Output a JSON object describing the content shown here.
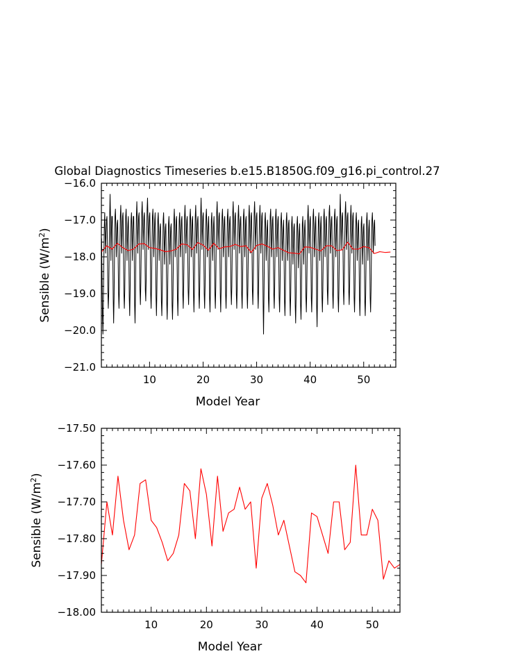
{
  "title": "Global Diagnostics Timeseries b.e15.B1850G.f09_g16.pi_control.27",
  "colors": {
    "monthly_line": "#000000",
    "annual_line": "#ff0000",
    "axis": "#000000",
    "background": "#ffffff"
  },
  "chart_data": [
    {
      "type": "line",
      "xlabel": "Model Year",
      "ylabel": "Sensible (W/m²)",
      "ylabel_base": "Sensible (W/m",
      "ylabel_sup": "2",
      "ylabel_tail": ")",
      "xlim": [
        1,
        56
      ],
      "ylim": [
        -21.0,
        -16.0
      ],
      "xticks": [
        10,
        20,
        30,
        40,
        50
      ],
      "xtick_labels": [
        "10",
        "20",
        "30",
        "40",
        "50"
      ],
      "yticks": [
        -21.0,
        -20.0,
        -19.0,
        -18.0,
        -17.0,
        -16.0
      ],
      "ytick_labels": [
        "−21.0",
        "−20.0",
        "−19.0",
        "−18.0",
        "−17.0",
        "−16.0"
      ],
      "series": [
        {
          "role": "monthly",
          "color": "#000000",
          "x_start": 1.04,
          "x_step": 0.0833333,
          "values": [
            -17.5,
            -18.5,
            -19.6,
            -20.1,
            -19.2,
            -18.1,
            -17.2,
            -16.8,
            -17.3,
            -17.9,
            -17.4,
            -17.0,
            -16.9,
            -17.6,
            -18.9,
            -19.4,
            -19.0,
            -17.9,
            -17.0,
            -16.3,
            -16.9,
            -18.1,
            -17.3,
            -16.9,
            -16.9,
            -17.8,
            -19.1,
            -19.8,
            -19.1,
            -17.8,
            -16.9,
            -16.7,
            -17.2,
            -18.0,
            -17.5,
            -17.1,
            -17.0,
            -17.9,
            -19.0,
            -19.4,
            -18.8,
            -17.7,
            -16.9,
            -16.6,
            -17.1,
            -17.9,
            -17.4,
            -16.9,
            -16.8,
            -17.7,
            -19.0,
            -19.4,
            -18.9,
            -17.7,
            -16.9,
            -16.7,
            -17.2,
            -18.1,
            -17.5,
            -17.1,
            -16.9,
            -17.8,
            -19.1,
            -19.6,
            -18.9,
            -17.8,
            -17.0,
            -16.8,
            -17.3,
            -18.1,
            -17.4,
            -16.9,
            -16.9,
            -17.7,
            -19.3,
            -19.8,
            -19.0,
            -17.8,
            -16.9,
            -16.5,
            -17.0,
            -17.9,
            -17.3,
            -16.9,
            -16.8,
            -17.6,
            -18.9,
            -19.3,
            -18.7,
            -17.6,
            -16.8,
            -16.5,
            -17.0,
            -17.8,
            -17.3,
            -16.9,
            -16.8,
            -17.6,
            -18.9,
            -19.2,
            -18.6,
            -17.5,
            -16.7,
            -16.4,
            -17.0,
            -17.8,
            -17.3,
            -16.9,
            -16.8,
            -17.6,
            -19.0,
            -19.4,
            -18.8,
            -17.7,
            -16.9,
            -16.7,
            -17.2,
            -18.0,
            -17.5,
            -17.0,
            -16.8,
            -17.7,
            -19.1,
            -19.6,
            -18.9,
            -17.8,
            -17.0,
            -16.8,
            -17.3,
            -18.1,
            -17.6,
            -17.2,
            -17.1,
            -17.9,
            -19.2,
            -19.6,
            -19.0,
            -17.9,
            -17.0,
            -16.8,
            -17.3,
            -18.2,
            -17.6,
            -17.2,
            -17.1,
            -18.0,
            -19.2,
            -19.7,
            -19.1,
            -18.0,
            -17.1,
            -16.9,
            -17.4,
            -18.2,
            -17.6,
            -17.2,
            -17.1,
            -17.9,
            -19.3,
            -19.7,
            -19.1,
            -17.9,
            -17.0,
            -16.7,
            -17.2,
            -18.0,
            -17.5,
            -17.0,
            -16.9,
            -17.8,
            -19.1,
            -19.6,
            -18.9,
            -17.8,
            -17.0,
            -16.8,
            -17.3,
            -18.0,
            -17.5,
            -17.0,
            -16.9,
            -17.7,
            -19.0,
            -19.4,
            -18.8,
            -17.7,
            -16.9,
            -16.6,
            -17.1,
            -17.9,
            -17.4,
            -17.0,
            -16.9,
            -17.7,
            -18.9,
            -19.3,
            -18.8,
            -17.8,
            -16.9,
            -16.7,
            -17.2,
            -18.0,
            -17.5,
            -17.0,
            -16.9,
            -17.7,
            -19.0,
            -19.5,
            -18.9,
            -17.7,
            -16.9,
            -16.6,
            -17.1,
            -17.9,
            -17.4,
            -17.0,
            -16.9,
            -17.7,
            -19.0,
            -19.4,
            -18.8,
            -17.7,
            -16.9,
            -16.4,
            -16.9,
            -17.8,
            -17.3,
            -16.9,
            -16.8,
            -17.6,
            -19.0,
            -19.4,
            -18.8,
            -17.7,
            -16.9,
            -16.7,
            -17.2,
            -18.0,
            -17.5,
            -17.1,
            -16.9,
            -17.7,
            -19.1,
            -19.5,
            -18.9,
            -17.8,
            -17.0,
            -16.8,
            -17.3,
            -18.1,
            -17.6,
            -17.1,
            -16.9,
            -17.7,
            -19.0,
            -19.4,
            -18.8,
            -17.6,
            -16.8,
            -16.5,
            -17.0,
            -17.8,
            -17.3,
            -16.9,
            -16.8,
            -17.6,
            -19.0,
            -19.5,
            -18.9,
            -17.8,
            -16.9,
            -16.7,
            -17.2,
            -18.0,
            -17.5,
            -17.0,
            -16.9,
            -17.7,
            -19.0,
            -19.4,
            -18.9,
            -17.7,
            -16.9,
            -16.7,
            -17.2,
            -18.0,
            -17.4,
            -17.0,
            -16.9,
            -17.6,
            -18.9,
            -19.3,
            -18.8,
            -17.6,
            -16.8,
            -16.5,
            -17.0,
            -17.8,
            -17.3,
            -16.9,
            -16.8,
            -17.6,
            -19.0,
            -19.4,
            -18.8,
            -17.7,
            -16.9,
            -16.6,
            -17.1,
            -17.9,
            -17.4,
            -17.0,
            -16.9,
            -17.7,
            -19.0,
            -19.4,
            -18.8,
            -17.7,
            -16.9,
            -16.7,
            -17.2,
            -18.0,
            -17.5,
            -17.0,
            -16.9,
            -17.7,
            -19.0,
            -19.4,
            -18.8,
            -17.7,
            -16.9,
            -16.6,
            -17.1,
            -17.9,
            -17.4,
            -16.9,
            -16.8,
            -17.6,
            -18.9,
            -19.3,
            -18.7,
            -17.6,
            -16.8,
            -16.5,
            -17.0,
            -17.8,
            -17.3,
            -16.9,
            -16.8,
            -17.6,
            -18.9,
            -19.4,
            -18.8,
            -17.7,
            -16.9,
            -16.6,
            -17.1,
            -17.9,
            -17.4,
            -16.9,
            -16.8,
            -17.7,
            -19.2,
            -20.1,
            -19.1,
            -17.9,
            -17.0,
            -16.8,
            -17.3,
            -18.1,
            -17.6,
            -17.2,
            -17.0,
            -17.8,
            -19.1,
            -19.5,
            -18.9,
            -17.8,
            -16.9,
            -16.7,
            -17.2,
            -18.0,
            -17.5,
            -17.0,
            -16.9,
            -17.7,
            -19.0,
            -19.4,
            -18.8,
            -17.7,
            -16.9,
            -16.7,
            -17.2,
            -18.0,
            -17.4,
            -17.0,
            -16.9,
            -17.8,
            -19.1,
            -19.5,
            -18.9,
            -17.8,
            -17.0,
            -16.8,
            -17.3,
            -18.1,
            -17.6,
            -17.2,
            -17.0,
            -17.9,
            -19.2,
            -19.6,
            -19.0,
            -17.9,
            -17.0,
            -16.8,
            -17.3,
            -18.1,
            -17.6,
            -17.1,
            -17.0,
            -17.8,
            -19.1,
            -19.6,
            -19.0,
            -17.9,
            -17.1,
            -16.9,
            -17.4,
            -18.2,
            -17.7,
            -17.2,
            -17.1,
            -17.9,
            -19.3,
            -19.8,
            -19.1,
            -18.0,
            -17.1,
            -16.9,
            -17.4,
            -18.3,
            -17.7,
            -17.3,
            -17.1,
            -18.0,
            -19.3,
            -19.7,
            -19.1,
            -18.0,
            -17.1,
            -16.9,
            -17.4,
            -18.2,
            -17.6,
            -17.2,
            -17.0,
            -17.8,
            -19.1,
            -19.5,
            -18.9,
            -17.8,
            -16.9,
            -16.6,
            -17.1,
            -17.9,
            -17.4,
            -17.0,
            -16.9,
            -17.8,
            -19.1,
            -19.5,
            -18.9,
            -17.8,
            -16.9,
            -16.7,
            -17.2,
            -18.0,
            -17.5,
            -17.1,
            -16.9,
            -17.8,
            -19.3,
            -19.9,
            -19.1,
            -17.8,
            -17.0,
            -16.8,
            -17.3,
            -18.1,
            -17.6,
            -17.1,
            -16.9,
            -17.8,
            -19.1,
            -19.5,
            -18.9,
            -17.8,
            -16.9,
            -16.7,
            -17.2,
            -18.0,
            -17.5,
            -17.0,
            -16.9,
            -17.6,
            -18.9,
            -19.3,
            -18.7,
            -17.6,
            -16.8,
            -16.6,
            -17.1,
            -17.9,
            -17.4,
            -17.0,
            -16.9,
            -17.7,
            -19.0,
            -19.4,
            -18.8,
            -17.7,
            -16.9,
            -16.7,
            -17.2,
            -18.0,
            -17.5,
            -17.0,
            -16.9,
            -17.7,
            -19.1,
            -19.5,
            -18.9,
            -17.8,
            -17.0,
            -16.3,
            -16.9,
            -17.8,
            -17.3,
            -16.9,
            -16.8,
            -17.6,
            -18.9,
            -19.3,
            -18.7,
            -17.6,
            -16.8,
            -16.5,
            -17.0,
            -17.8,
            -17.3,
            -16.9,
            -16.8,
            -17.6,
            -18.9,
            -19.3,
            -18.8,
            -17.7,
            -16.9,
            -16.6,
            -17.1,
            -17.9,
            -17.4,
            -16.9,
            -16.8,
            -17.7,
            -19.1,
            -19.5,
            -18.9,
            -17.8,
            -17.0,
            -16.8,
            -17.3,
            -18.1,
            -17.6,
            -17.1,
            -17.0,
            -17.8,
            -19.1,
            -19.6,
            -19.0,
            -17.9,
            -17.1,
            -16.9,
            -17.4,
            -18.2,
            -17.7,
            -17.2,
            -17.1,
            -17.9,
            -19.2,
            -19.6,
            -19.0,
            -17.9,
            -17.0,
            -16.8,
            -17.3,
            -18.1,
            -17.6,
            -17.2,
            -17.0,
            -17.8,
            -19.1,
            -19.5,
            -18.9,
            -17.8,
            -17.0,
            -16.8,
            -17.2,
            -17.9,
            -17.5,
            -17.1,
            -17.0,
            -17.7
          ]
        },
        {
          "role": "annual-mean",
          "color": "#ff0000",
          "x": [
            1,
            2,
            3,
            4,
            5,
            6,
            7,
            8,
            9,
            10,
            11,
            12,
            13,
            14,
            15,
            16,
            17,
            18,
            19,
            20,
            21,
            22,
            23,
            24,
            25,
            26,
            27,
            28,
            29,
            30,
            31,
            32,
            33,
            34,
            35,
            36,
            37,
            38,
            39,
            40,
            41,
            42,
            43,
            44,
            45,
            46,
            47,
            48,
            49,
            50,
            51,
            52,
            53,
            54,
            55
          ],
          "values": [
            -17.87,
            -17.7,
            -17.79,
            -17.63,
            -17.75,
            -17.83,
            -17.79,
            -17.65,
            -17.64,
            -17.75,
            -17.77,
            -17.81,
            -17.86,
            -17.84,
            -17.79,
            -17.65,
            -17.67,
            -17.8,
            -17.61,
            -17.68,
            -17.82,
            -17.63,
            -17.78,
            -17.73,
            -17.72,
            -17.66,
            -17.72,
            -17.7,
            -17.88,
            -17.69,
            -17.65,
            -17.71,
            -17.79,
            -17.75,
            -17.82,
            -17.89,
            -17.9,
            -17.92,
            -17.73,
            -17.74,
            -17.79,
            -17.84,
            -17.7,
            -17.7,
            -17.83,
            -17.81,
            -17.6,
            -17.79,
            -17.79,
            -17.72,
            -17.75,
            -17.91,
            -17.86,
            -17.88,
            -17.87
          ]
        }
      ]
    },
    {
      "type": "line",
      "xlabel": "Model Year",
      "ylabel": "Sensible (W/m²)",
      "ylabel_base": "Sensible (W/m",
      "ylabel_sup": "2",
      "ylabel_tail": ")",
      "xlim": [
        1,
        55
      ],
      "ylim": [
        -18.0,
        -17.5
      ],
      "xticks": [
        10,
        20,
        30,
        40,
        50
      ],
      "xtick_labels": [
        "10",
        "20",
        "30",
        "40",
        "50"
      ],
      "yticks": [
        -18.0,
        -17.9,
        -17.8,
        -17.7,
        -17.6,
        -17.5
      ],
      "ytick_labels": [
        "−18.00",
        "−17.90",
        "−17.80",
        "−17.70",
        "−17.60",
        "−17.50"
      ],
      "series": [
        {
          "role": "annual-mean",
          "color": "#ff0000",
          "x": [
            1,
            2,
            3,
            4,
            5,
            6,
            7,
            8,
            9,
            10,
            11,
            12,
            13,
            14,
            15,
            16,
            17,
            18,
            19,
            20,
            21,
            22,
            23,
            24,
            25,
            26,
            27,
            28,
            29,
            30,
            31,
            32,
            33,
            34,
            35,
            36,
            37,
            38,
            39,
            40,
            41,
            42,
            43,
            44,
            45,
            46,
            47,
            48,
            49,
            50,
            51,
            52,
            53,
            54,
            55
          ],
          "values": [
            -17.87,
            -17.7,
            -17.79,
            -17.63,
            -17.75,
            -17.83,
            -17.79,
            -17.65,
            -17.64,
            -17.75,
            -17.77,
            -17.81,
            -17.86,
            -17.84,
            -17.79,
            -17.65,
            -17.67,
            -17.8,
            -17.61,
            -17.68,
            -17.82,
            -17.63,
            -17.78,
            -17.73,
            -17.72,
            -17.66,
            -17.72,
            -17.7,
            -17.88,
            -17.69,
            -17.65,
            -17.71,
            -17.79,
            -17.75,
            -17.82,
            -17.89,
            -17.9,
            -17.92,
            -17.73,
            -17.74,
            -17.79,
            -17.84,
            -17.7,
            -17.7,
            -17.83,
            -17.81,
            -17.6,
            -17.79,
            -17.79,
            -17.72,
            -17.75,
            -17.91,
            -17.86,
            -17.88,
            -17.87
          ]
        }
      ]
    }
  ]
}
